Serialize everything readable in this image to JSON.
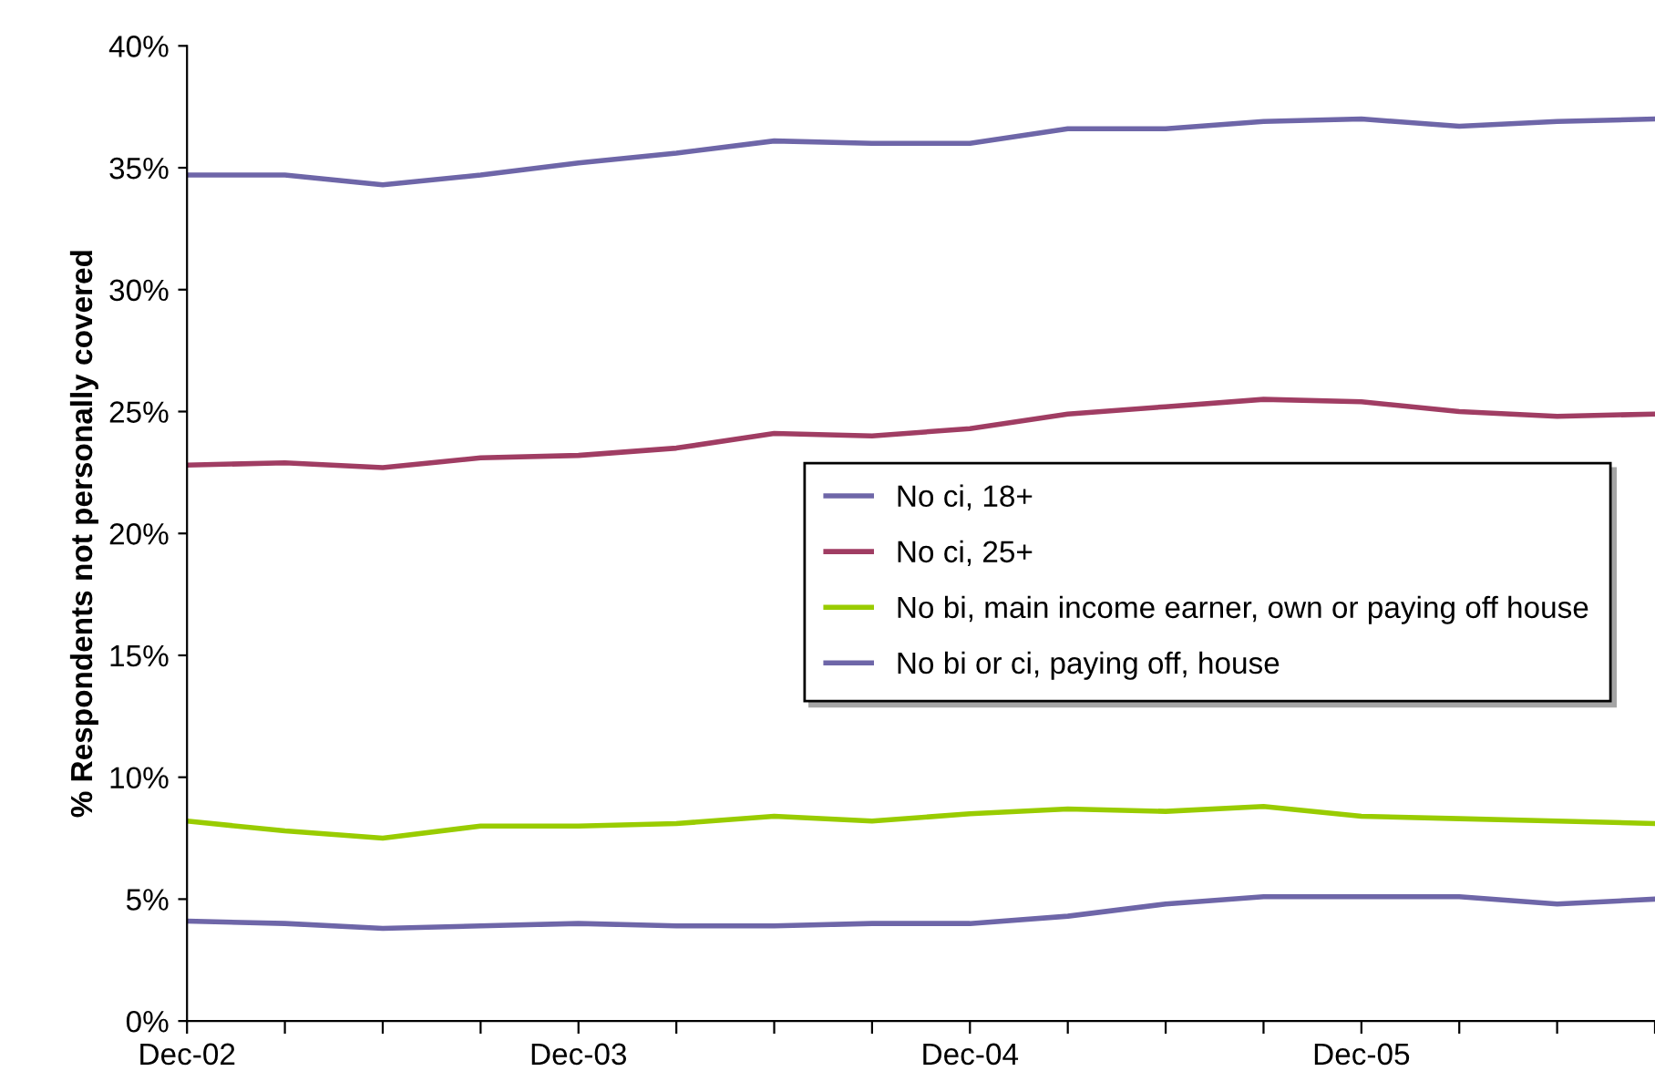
{
  "chart_data": {
    "type": "line",
    "ylabel": "% Respondents not personally covered",
    "categories": [
      "Dec-02",
      null,
      null,
      null,
      "Dec-03",
      null,
      null,
      null,
      "Dec-04",
      null,
      null,
      null,
      "Dec-05",
      null,
      null,
      null
    ],
    "series": [
      {
        "name": "No ci, 18+",
        "color": "#6e66a8",
        "values": [
          34.7,
          34.7,
          34.3,
          34.7,
          35.2,
          35.6,
          36.1,
          36.0,
          36.0,
          36.6,
          36.6,
          36.9,
          37.0,
          36.7,
          36.9,
          37.0
        ]
      },
      {
        "name": "No ci, 25+",
        "color": "#a03d63",
        "values": [
          22.8,
          22.9,
          22.7,
          23.1,
          23.2,
          23.5,
          24.1,
          24.0,
          24.3,
          24.9,
          25.2,
          25.5,
          25.4,
          25.0,
          24.8,
          24.9
        ]
      },
      {
        "name": "No bi, main income earner, own or paying off house",
        "color": "#99cc00",
        "values": [
          8.2,
          7.8,
          7.5,
          8.0,
          8.0,
          8.1,
          8.4,
          8.2,
          8.5,
          8.7,
          8.6,
          8.8,
          8.4,
          8.3,
          8.2,
          8.1
        ]
      },
      {
        "name": "No bi or ci, paying off, house",
        "color": "#6e66a8",
        "values": [
          4.1,
          4.0,
          3.8,
          3.9,
          4.0,
          3.9,
          3.9,
          4.0,
          4.0,
          4.3,
          4.8,
          5.1,
          5.1,
          5.1,
          4.8,
          5.0
        ]
      }
    ],
    "ylim": [
      0,
      40
    ],
    "yticks": [
      {
        "value": 0,
        "label": "0%"
      },
      {
        "value": 5,
        "label": "5%"
      },
      {
        "value": 10,
        "label": "10%"
      },
      {
        "value": 15,
        "label": "15%"
      },
      {
        "value": 20,
        "label": "20%"
      },
      {
        "value": 25,
        "label": "25%"
      },
      {
        "value": 30,
        "label": "30%"
      },
      {
        "value": 35,
        "label": "35%"
      },
      {
        "value": 40,
        "label": "40%"
      }
    ],
    "grid": false,
    "legend": "center right",
    "marker": "none",
    "line_style": "solid"
  }
}
